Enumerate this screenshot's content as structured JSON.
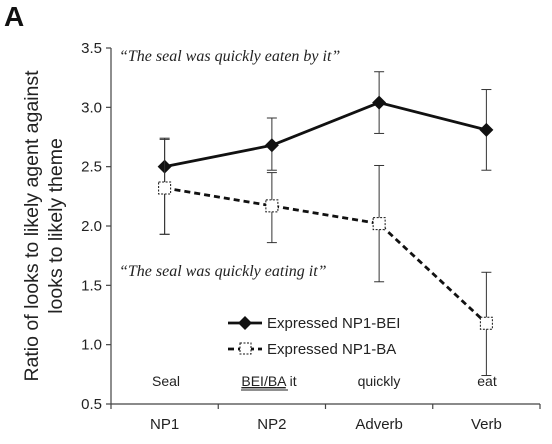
{
  "panel_label": "A",
  "annotations": {
    "top_quote": "“The seal was quickly eaten by it”",
    "bottom_quote": "“The seal was quickly eating it”"
  },
  "sentence_words": {
    "w1": "Seal",
    "w2_underlined": "BEI/BA",
    "w2_rest": " it",
    "w3": "quickly",
    "w4": "eat"
  },
  "colors": {
    "axis": "#444444",
    "series": "#111111",
    "marker_open_fill": "#ffffff"
  },
  "chart_data": {
    "type": "line",
    "title": "",
    "ylabel_line1": "Ratio of looks to likely agent against",
    "ylabel_line2": "looks to likely theme",
    "xlabel": "",
    "categories": [
      "NP1",
      "NP2",
      "Adverb",
      "Verb"
    ],
    "ylim": [
      0.5,
      3.5
    ],
    "yticks": [
      "0.5",
      "1.0",
      "1.5",
      "2.0",
      "2.5",
      "3.0",
      "3.5"
    ],
    "grid": false,
    "legend_position": "bottom-center",
    "series": [
      {
        "name": "Expressed NP1-BEI",
        "values": [
          2.5,
          2.68,
          3.04,
          2.81
        ],
        "error_low": [
          1.93,
          2.47,
          2.78,
          2.47
        ],
        "error_high": [
          2.74,
          2.91,
          3.3,
          3.15
        ],
        "marker": "filled-diamond",
        "line_style": "solid"
      },
      {
        "name": "Expressed NP1-BA",
        "values": [
          2.32,
          2.17,
          2.02,
          1.18
        ],
        "error_low": [
          1.93,
          1.86,
          1.53,
          0.74
        ],
        "error_high": [
          2.73,
          2.45,
          2.51,
          1.61
        ],
        "marker": "open-square",
        "line_style": "dashed"
      }
    ]
  }
}
